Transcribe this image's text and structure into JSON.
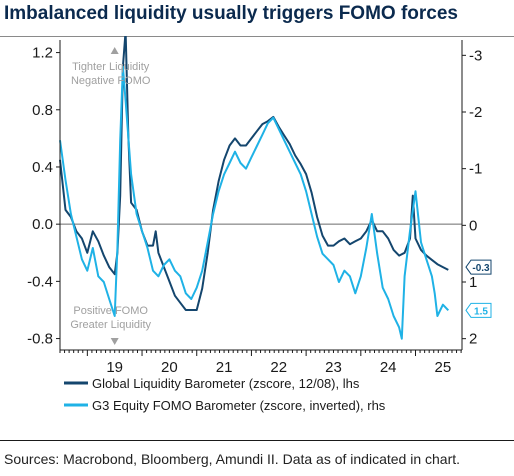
{
  "title": "Imbalanced liquidity usually triggers FOMO forces",
  "source": "Sources: Macrobond, Bloomberg, Amundi II. Data as of indicated in chart.",
  "colors": {
    "title": "#0b2a4e",
    "lhs_series": "#14466e",
    "rhs_series": "#1fb2e6",
    "axis": "#1a1a1a",
    "zero_line": "#6b6b6b",
    "annotation": "#a0a0a0"
  },
  "chart_data": {
    "type": "line",
    "x_tick_labels": [
      "19",
      "20",
      "21",
      "22",
      "23",
      "24",
      "25"
    ],
    "x_range": [
      2018.5,
      2025.85
    ],
    "y_left": {
      "ticks": [
        1.2,
        0.8,
        0.4,
        0.0,
        -0.4,
        -0.8
      ],
      "tick_labels": [
        "1.2",
        "0.8",
        "0.4",
        "0.0",
        "-0.4",
        "-0.8"
      ],
      "range": [
        -0.88,
        1.26
      ]
    },
    "y_right": {
      "ticks": [
        -3,
        -2,
        -1,
        0,
        1,
        2
      ],
      "tick_labels": [
        "-3",
        "-2",
        "-1",
        "0",
        "1",
        "2"
      ],
      "range": [
        2.2,
        -3.2
      ],
      "inverted": true
    },
    "annotations": {
      "top": [
        "Tighter Liquidity",
        "Negative FOMO"
      ],
      "bottom": [
        "Positive FOMO",
        "Greater Liquidity"
      ]
    },
    "end_labels": {
      "lhs": "-0.3",
      "rhs": "1.5"
    },
    "series": [
      {
        "name": "Global Liquidity Barometer (zscore, 12/08), lhs",
        "axis": "left",
        "x": [
          2018.5,
          2018.6,
          2018.7,
          2018.8,
          2018.9,
          2019.0,
          2019.1,
          2019.2,
          2019.3,
          2019.4,
          2019.5,
          2019.55,
          2019.6,
          2019.65,
          2019.7,
          2019.75,
          2019.8,
          2019.9,
          2020.0,
          2020.1,
          2020.2,
          2020.25,
          2020.3,
          2020.4,
          2020.5,
          2020.6,
          2020.7,
          2020.8,
          2020.9,
          2021.0,
          2021.1,
          2021.2,
          2021.3,
          2021.4,
          2021.5,
          2021.6,
          2021.7,
          2021.8,
          2021.9,
          2022.0,
          2022.1,
          2022.2,
          2022.3,
          2022.4,
          2022.5,
          2022.6,
          2022.7,
          2022.8,
          2022.9,
          2023.0,
          2023.1,
          2023.2,
          2023.3,
          2023.4,
          2023.5,
          2023.6,
          2023.7,
          2023.8,
          2023.9,
          2024.0,
          2024.1,
          2024.2,
          2024.3,
          2024.4,
          2024.5,
          2024.6,
          2024.7,
          2024.8,
          2024.9,
          2024.95,
          2025.0,
          2025.1,
          2025.2,
          2025.3,
          2025.4,
          2025.5,
          2025.6
        ],
        "values": [
          0.45,
          0.1,
          0.05,
          -0.05,
          -0.1,
          -0.2,
          -0.05,
          -0.12,
          -0.22,
          -0.3,
          -0.35,
          -0.2,
          0.2,
          1.1,
          1.35,
          0.6,
          0.15,
          0.1,
          -0.05,
          -0.15,
          -0.15,
          -0.05,
          -0.2,
          -0.3,
          -0.4,
          -0.5,
          -0.55,
          -0.6,
          -0.6,
          -0.6,
          -0.45,
          -0.2,
          0.1,
          0.3,
          0.45,
          0.55,
          0.6,
          0.55,
          0.55,
          0.6,
          0.65,
          0.7,
          0.72,
          0.75,
          0.68,
          0.62,
          0.56,
          0.48,
          0.42,
          0.35,
          0.22,
          0.05,
          -0.08,
          -0.15,
          -0.15,
          -0.12,
          -0.1,
          -0.14,
          -0.12,
          -0.1,
          -0.05,
          0.03,
          -0.05,
          -0.05,
          -0.1,
          -0.18,
          -0.22,
          -0.2,
          -0.1,
          0.2,
          -0.1,
          -0.18,
          -0.22,
          -0.25,
          -0.28,
          -0.3,
          -0.32
        ]
      },
      {
        "name": "G3 Equity FOMO Barometer (zscore, inverted), rhs",
        "axis": "right",
        "x": [
          2018.5,
          2018.6,
          2018.7,
          2018.8,
          2018.9,
          2019.0,
          2019.1,
          2019.2,
          2019.3,
          2019.4,
          2019.5,
          2019.55,
          2019.6,
          2019.65,
          2019.7,
          2019.8,
          2019.9,
          2020.0,
          2020.1,
          2020.2,
          2020.3,
          2020.4,
          2020.5,
          2020.6,
          2020.7,
          2020.8,
          2020.9,
          2021.0,
          2021.1,
          2021.2,
          2021.3,
          2021.4,
          2021.5,
          2021.6,
          2021.7,
          2021.8,
          2021.9,
          2022.0,
          2022.1,
          2022.2,
          2022.3,
          2022.4,
          2022.5,
          2022.6,
          2022.7,
          2022.8,
          2022.9,
          2023.0,
          2023.1,
          2023.2,
          2023.3,
          2023.4,
          2023.5,
          2023.6,
          2023.7,
          2023.8,
          2023.9,
          2024.0,
          2024.1,
          2024.2,
          2024.3,
          2024.4,
          2024.5,
          2024.6,
          2024.7,
          2024.75,
          2024.8,
          2024.9,
          2025.0,
          2025.1,
          2025.2,
          2025.3,
          2025.35,
          2025.4,
          2025.5,
          2025.6
        ],
        "values": [
          -1.5,
          -0.8,
          -0.2,
          0.2,
          0.6,
          0.8,
          0.4,
          0.9,
          1.0,
          1.3,
          1.6,
          0.4,
          -1.5,
          -2.8,
          -2.2,
          -0.9,
          -0.2,
          0.1,
          0.4,
          0.8,
          0.9,
          0.7,
          0.6,
          0.8,
          0.9,
          1.2,
          1.3,
          1.1,
          0.8,
          0.3,
          -0.2,
          -0.6,
          -0.9,
          -1.1,
          -1.3,
          -1.1,
          -1.0,
          -1.2,
          -1.4,
          -1.6,
          -1.8,
          -1.9,
          -1.7,
          -1.5,
          -1.3,
          -1.1,
          -0.9,
          -0.6,
          -0.2,
          0.2,
          0.5,
          0.6,
          0.7,
          1.0,
          0.8,
          0.9,
          1.2,
          0.9,
          0.4,
          -0.2,
          0.5,
          1.1,
          1.3,
          1.6,
          1.8,
          2.0,
          0.9,
          0.1,
          -0.6,
          0.3,
          0.6,
          0.9,
          1.2,
          1.6,
          1.4,
          1.5
        ]
      }
    ]
  }
}
